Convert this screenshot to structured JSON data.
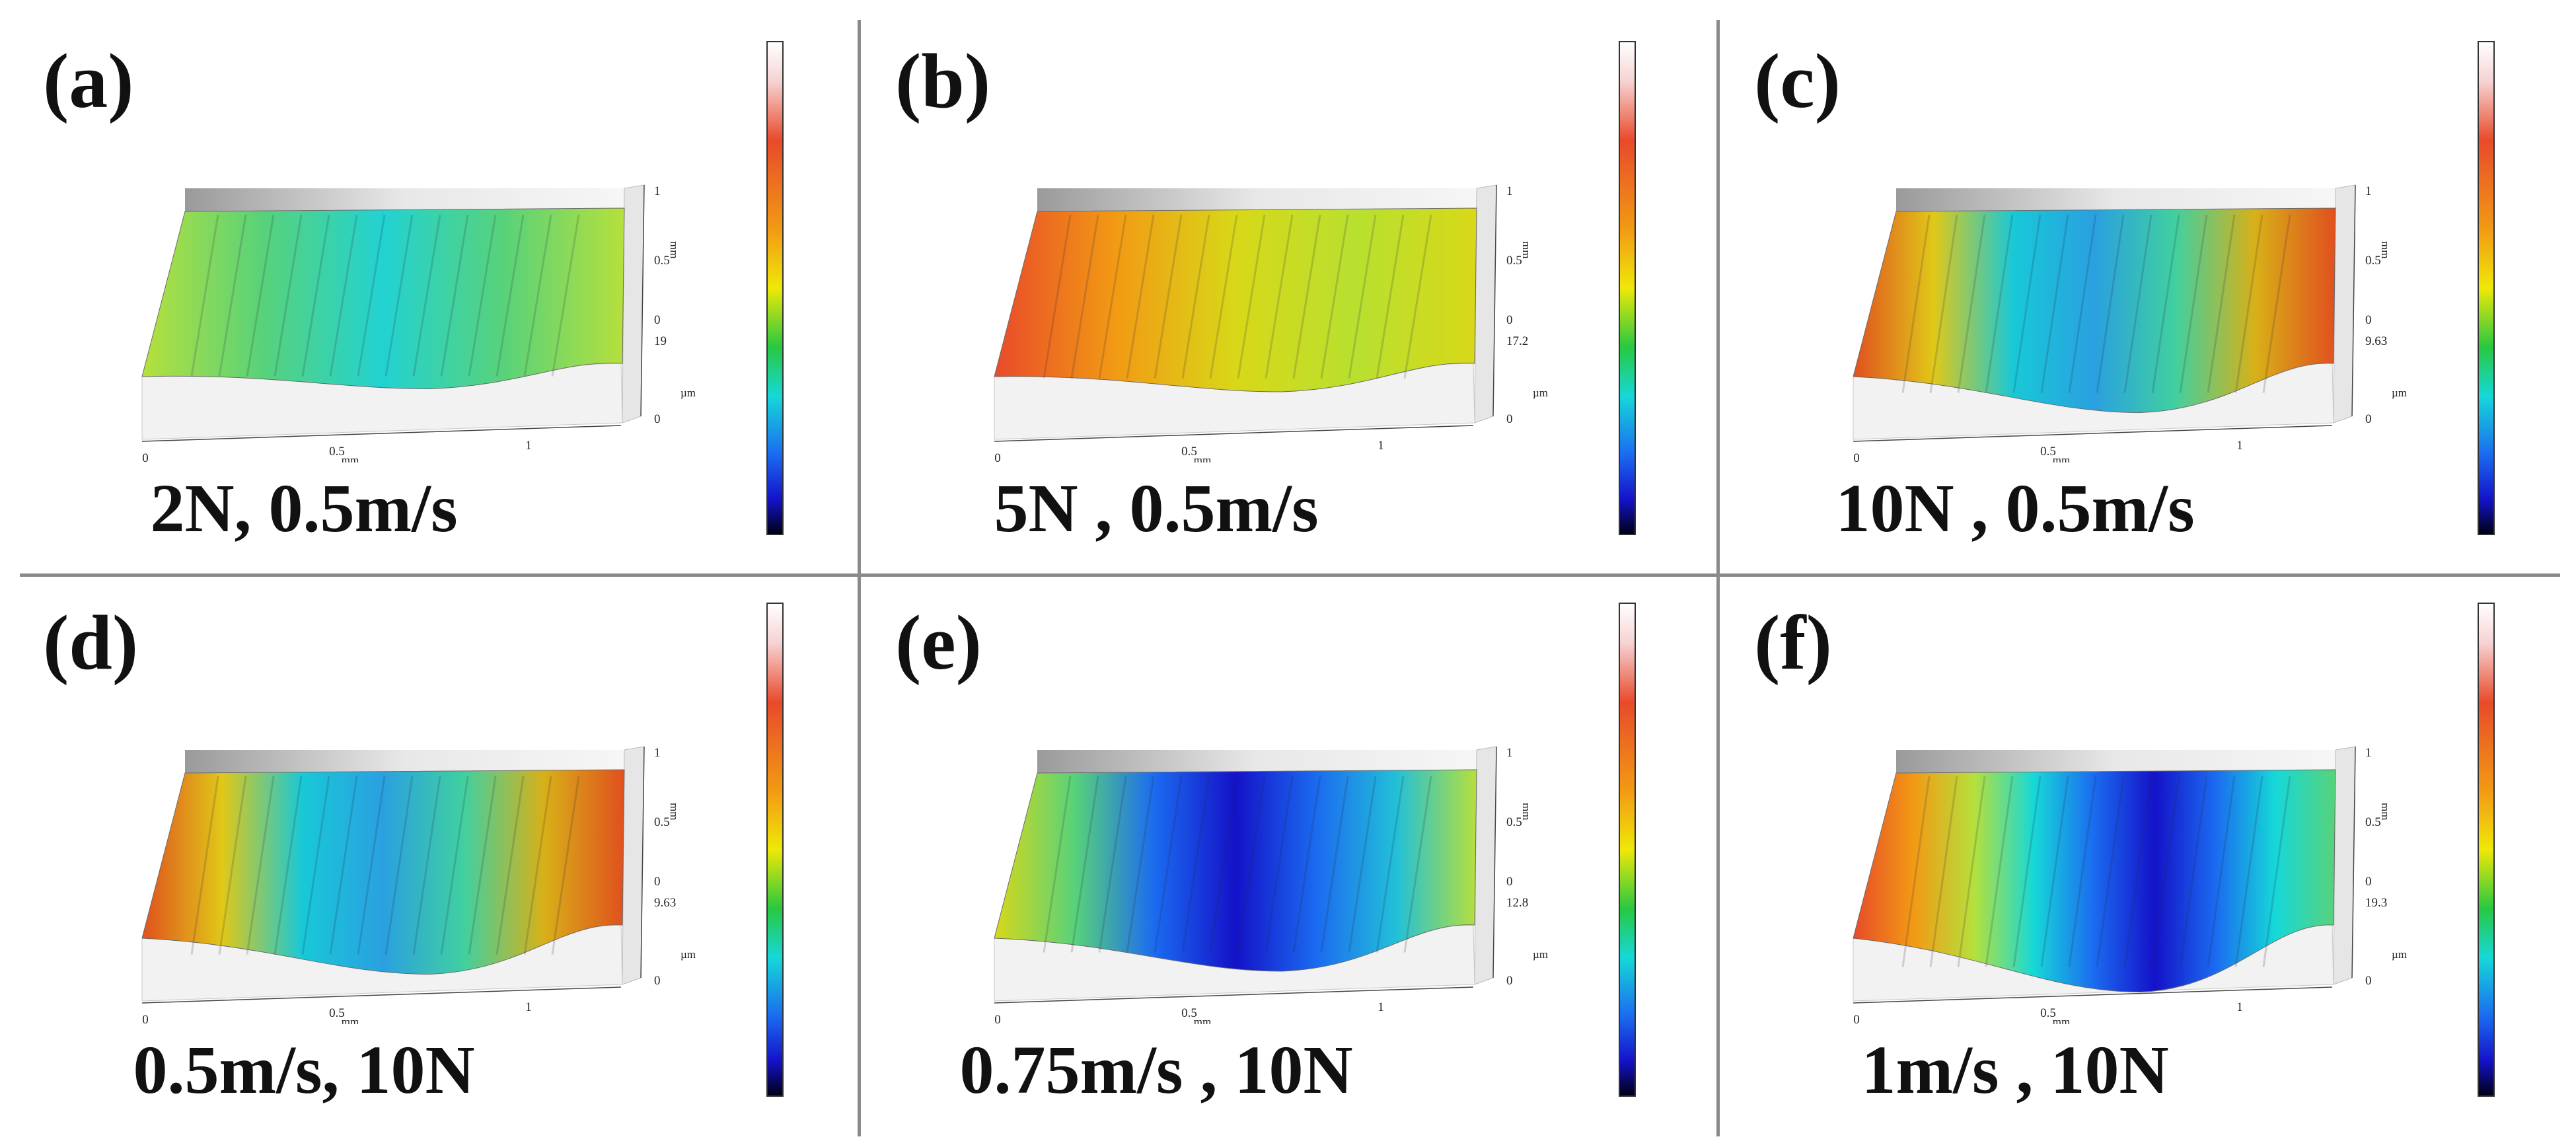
{
  "figure": {
    "colormap_colors": [
      "#ffffff",
      "#f6d2d2",
      "#e84a2a",
      "#f29a14",
      "#efe808",
      "#28c840",
      "#16d8d8",
      "#1b6af0",
      "#1412c8",
      "#000018"
    ],
    "panels": [
      {
        "letter": "(a)",
        "caption": "2N, 0.5m/s",
        "z_max": "19",
        "mm_top": "1",
        "mm_mid": "0.5",
        "z_zero_mm": "0",
        "z_unit": "µm",
        "z_zero": "0",
        "x_ticks": [
          "0",
          "0.5",
          "1"
        ],
        "x_unit": "mm",
        "surface_colors": [
          "#b6e03c",
          "#58d27a",
          "#22d2d2",
          "#58d27a",
          "#b6e03c"
        ],
        "depth_fraction": 0.15
      },
      {
        "letter": "(b)",
        "caption": "5N , 0.5m/s",
        "z_max": "17.2",
        "mm_top": "1",
        "mm_mid": "0.5",
        "z_zero_mm": "0",
        "z_unit": "µm",
        "z_zero": "0",
        "x_ticks": [
          "0",
          "0.5",
          "1"
        ],
        "x_unit": "mm",
        "surface_colors": [
          "#e84a2a",
          "#f29a14",
          "#d8d818",
          "#b8e030",
          "#d8d818"
        ],
        "depth_fraction": 0.2
      },
      {
        "letter": "(c)",
        "caption": "10N , 0.5m/s",
        "z_max": "9.63",
        "mm_top": "1",
        "mm_mid": "0.5",
        "z_zero_mm": "0",
        "z_unit": "µm",
        "z_zero": "0",
        "x_ticks": [
          "0",
          "0.5",
          "1"
        ],
        "x_unit": "mm",
        "surface_colors": [
          "#e0501e",
          "#e0c818",
          "#18c8d8",
          "#2aa0e0",
          "#40d0a0",
          "#d8b018",
          "#e0501e"
        ],
        "depth_fraction": 0.55
      },
      {
        "letter": "(d)",
        "caption": "0.5m/s, 10N",
        "z_max": "9.63",
        "mm_top": "1",
        "mm_mid": "0.5",
        "z_zero_mm": "0",
        "z_unit": "µm",
        "z_zero": "0",
        "x_ticks": [
          "0",
          "0.5",
          "1"
        ],
        "x_unit": "mm",
        "surface_colors": [
          "#e0501e",
          "#e0c818",
          "#18c8d8",
          "#2aa0e0",
          "#40d0a0",
          "#d8b018",
          "#e0501e"
        ],
        "depth_fraction": 0.55
      },
      {
        "letter": "(e)",
        "caption": "0.75m/s , 10N",
        "z_max": "12.8",
        "mm_top": "1",
        "mm_mid": "0.5",
        "z_zero_mm": "0",
        "z_unit": "µm",
        "z_zero": "0",
        "x_ticks": [
          "0",
          "0.5",
          "1"
        ],
        "x_unit": "mm",
        "surface_colors": [
          "#d8d818",
          "#58d27a",
          "#1b6af0",
          "#1412c8",
          "#1b6af0",
          "#22c0d8",
          "#b6e03c"
        ],
        "depth_fraction": 0.5
      },
      {
        "letter": "(f)",
        "caption": "1m/s , 10N",
        "z_max": "19.3",
        "mm_top": "1",
        "mm_mid": "0.5",
        "z_zero_mm": "0",
        "z_unit": "µm",
        "z_zero": "0",
        "x_ticks": [
          "0",
          "0.5",
          "1"
        ],
        "x_unit": "mm",
        "surface_colors": [
          "#e84a2a",
          "#f29a14",
          "#b6e03c",
          "#16d8d8",
          "#1b6af0",
          "#1412c8",
          "#1b6af0",
          "#16d8d8",
          "#58d27a"
        ],
        "depth_fraction": 0.85
      }
    ]
  }
}
